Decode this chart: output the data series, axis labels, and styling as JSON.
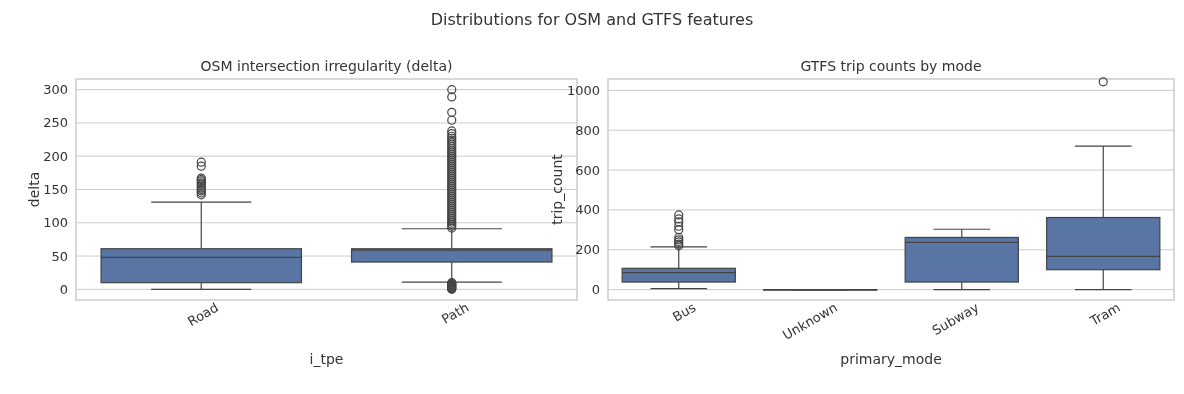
{
  "chart_data": [
    {
      "type": "box",
      "annotations": [
        "Distributions for OSM and GTFS features"
      ],
      "title": "OSM intersection irregularity (delta)",
      "xlabel": "i_tpe",
      "ylabel": "delta",
      "categories": [
        "Road",
        "Path"
      ],
      "color": "#5875a4",
      "ylim": [
        -16,
        316
      ],
      "yticks": [
        0,
        50,
        100,
        150,
        200,
        250,
        300
      ],
      "grid": "y",
      "boxes": [
        {
          "low": 0,
          "q1": 10,
          "median": 48,
          "q3": 61,
          "high": 131,
          "outliers": [
            142,
            145,
            148,
            150,
            152,
            155,
            158,
            160,
            163,
            165,
            167,
            185,
            191
          ]
        },
        {
          "low": 11,
          "q1": 41,
          "median": 59,
          "q3": 61,
          "high": 91,
          "outliers": [
            0,
            1,
            2,
            3,
            4,
            5,
            6,
            7,
            8,
            9,
            10,
            92,
            95,
            98,
            101,
            104,
            107,
            110,
            113,
            116,
            119,
            122,
            125,
            128,
            131,
            134,
            137,
            140,
            143,
            146,
            149,
            152,
            155,
            158,
            161,
            164,
            167,
            170,
            173,
            176,
            179,
            182,
            185,
            188,
            191,
            194,
            197,
            200,
            203,
            206,
            209,
            212,
            215,
            218,
            221,
            224,
            227,
            230,
            234,
            238,
            254,
            266,
            289,
            300
          ]
        }
      ]
    },
    {
      "type": "box",
      "title": "GTFS trip counts by mode",
      "xlabel": "primary_mode",
      "ylabel": "trip_count",
      "categories": [
        "Bus",
        "Unknown",
        "Subway",
        "Tram"
      ],
      "color": "#5875a4",
      "ylim": [
        -52,
        1057
      ],
      "yticks": [
        0,
        200,
        400,
        600,
        800,
        1000
      ],
      "grid": "y",
      "boxes": [
        {
          "low": 5,
          "q1": 38,
          "median": 85,
          "q3": 107,
          "high": 215,
          "outliers": [
            220,
            228,
            240,
            250,
            262,
            300,
            318,
            340,
            355,
            375
          ]
        },
        {
          "low": 0,
          "q1": 0,
          "median": 0,
          "q3": 0,
          "high": 0
        },
        {
          "low": 0,
          "q1": 38,
          "median": 237,
          "q3": 262,
          "high": 303
        },
        {
          "low": 0,
          "q1": 100,
          "median": 167,
          "q3": 362,
          "high": 720,
          "outliers": [
            1043
          ]
        }
      ]
    }
  ]
}
